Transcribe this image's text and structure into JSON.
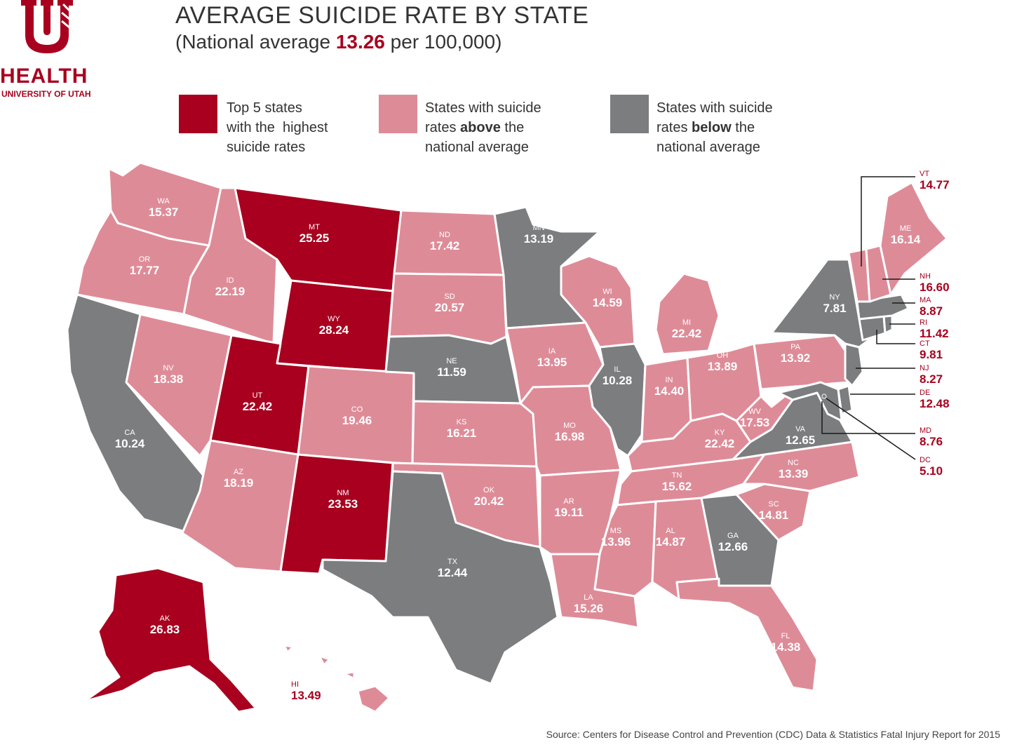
{
  "header": {
    "title": "AVERAGE SUICIDE RATE BY STATE",
    "subtitle_prefix": "(National average ",
    "subtitle_value": "13.26",
    "subtitle_suffix": " per 100,000)"
  },
  "logo": {
    "word": "HEALTH",
    "sub": "UNIVERSITY OF UTAH"
  },
  "colors": {
    "top5": "#a8001e",
    "above": "#de8b98",
    "below": "#7b7d7f",
    "border": "#ffffff",
    "callout": "#a8001e"
  },
  "legend": {
    "top5": {
      "line1": "Top 5 states",
      "line2": "with the  highest",
      "line3": "suicide rates"
    },
    "above": {
      "line1": "States with suicide",
      "line2_pre": "rates ",
      "line2_bold": "above",
      "line2_post": " the",
      "line3": "national average"
    },
    "below": {
      "line1": "States with suicide",
      "line2_pre": "rates ",
      "line2_bold": "below",
      "line2_post": " the",
      "line3": "national average"
    }
  },
  "states": {
    "WA": {
      "abbr": "WA",
      "rate": "15.37",
      "category": "above"
    },
    "OR": {
      "abbr": "OR",
      "rate": "17.77",
      "category": "above"
    },
    "CA": {
      "abbr": "CA",
      "rate": "10.24",
      "category": "below"
    },
    "ID": {
      "abbr": "ID",
      "rate": "22.19",
      "category": "above"
    },
    "NV": {
      "abbr": "NV",
      "rate": "18.38",
      "category": "above"
    },
    "MT": {
      "abbr": "MT",
      "rate": "25.25",
      "category": "top5"
    },
    "WY": {
      "abbr": "WY",
      "rate": "28.24",
      "category": "top5"
    },
    "UT": {
      "abbr": "UT",
      "rate": "22.42",
      "category": "top5"
    },
    "AZ": {
      "abbr": "AZ",
      "rate": "18.19",
      "category": "above"
    },
    "CO": {
      "abbr": "CO",
      "rate": "19.46",
      "category": "above"
    },
    "NM": {
      "abbr": "NM",
      "rate": "23.53",
      "category": "top5"
    },
    "ND": {
      "abbr": "ND",
      "rate": "17.42",
      "category": "above"
    },
    "SD": {
      "abbr": "SD",
      "rate": "20.57",
      "category": "above"
    },
    "NE": {
      "abbr": "NE",
      "rate": "11.59",
      "category": "below"
    },
    "KS": {
      "abbr": "KS",
      "rate": "16.21",
      "category": "above"
    },
    "OK": {
      "abbr": "OK",
      "rate": "20.42",
      "category": "above"
    },
    "TX": {
      "abbr": "TX",
      "rate": "12.44",
      "category": "below"
    },
    "MN": {
      "abbr": "MN",
      "rate": "13.19",
      "category": "below"
    },
    "IA": {
      "abbr": "IA",
      "rate": "13.95",
      "category": "above"
    },
    "MO": {
      "abbr": "MO",
      "rate": "16.98",
      "category": "above"
    },
    "AR": {
      "abbr": "AR",
      "rate": "19.11",
      "category": "above"
    },
    "LA": {
      "abbr": "LA",
      "rate": "15.26",
      "category": "above"
    },
    "WI": {
      "abbr": "WI",
      "rate": "14.59",
      "category": "above"
    },
    "IL": {
      "abbr": "IL",
      "rate": "10.28",
      "category": "below"
    },
    "MI": {
      "abbr": "MI",
      "rate": "22.42",
      "category": "above"
    },
    "IN": {
      "abbr": "IN",
      "rate": "14.40",
      "category": "above"
    },
    "OH": {
      "abbr": "OH",
      "rate": "13.89",
      "category": "above"
    },
    "KY": {
      "abbr": "KY",
      "rate": "22.42",
      "category": "above"
    },
    "TN": {
      "abbr": "TN",
      "rate": "15.62",
      "category": "above"
    },
    "MS": {
      "abbr": "MS",
      "rate": "13.96",
      "category": "above"
    },
    "AL": {
      "abbr": "AL",
      "rate": "14.87",
      "category": "above"
    },
    "GA": {
      "abbr": "GA",
      "rate": "12.66",
      "category": "below"
    },
    "FL": {
      "abbr": "FL",
      "rate": "14.38",
      "category": "above"
    },
    "SC": {
      "abbr": "SC",
      "rate": "14.81",
      "category": "above"
    },
    "NC": {
      "abbr": "NC",
      "rate": "13.39",
      "category": "above"
    },
    "VA": {
      "abbr": "VA",
      "rate": "12.65",
      "category": "below"
    },
    "WV": {
      "abbr": "WV",
      "rate": "17.53",
      "category": "above"
    },
    "PA": {
      "abbr": "PA",
      "rate": "13.92",
      "category": "above"
    },
    "NY": {
      "abbr": "NY",
      "rate": "7.81",
      "category": "below"
    },
    "ME": {
      "abbr": "ME",
      "rate": "16.14",
      "category": "above"
    },
    "AK": {
      "abbr": "AK",
      "rate": "26.83",
      "category": "top5"
    },
    "HI": {
      "abbr": "HI",
      "rate": "13.49",
      "category": "above"
    },
    "VT": {
      "abbr": "VT",
      "rate": "14.77",
      "category": "above"
    },
    "NH": {
      "abbr": "NH",
      "rate": "16.60",
      "category": "above"
    },
    "MA": {
      "abbr": "MA",
      "rate": "8.87",
      "category": "below"
    },
    "RI": {
      "abbr": "RI",
      "rate": "11.42",
      "category": "below"
    },
    "CT": {
      "abbr": "CT",
      "rate": "9.81",
      "category": "below"
    },
    "NJ": {
      "abbr": "NJ",
      "rate": "8.27",
      "category": "below"
    },
    "DE": {
      "abbr": "DE",
      "rate": "12.48",
      "category": "below"
    },
    "MD": {
      "abbr": "MD",
      "rate": "8.76",
      "category": "below"
    },
    "DC": {
      "abbr": "DC",
      "rate": "5.10",
      "category": "below"
    }
  },
  "source": "Source: Centers for Disease Control and Prevention (CDC) Data & Statistics Fatal Injury Report for 2015"
}
